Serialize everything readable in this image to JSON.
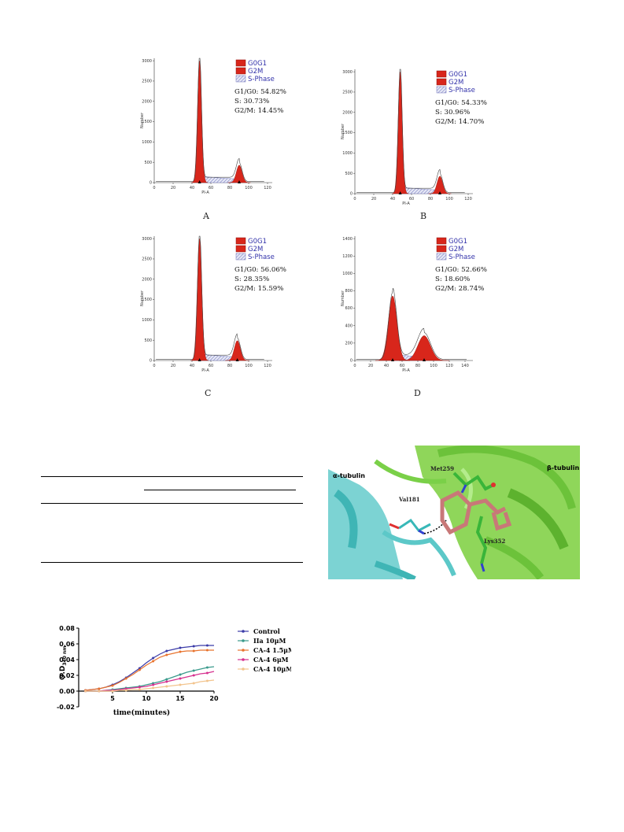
{
  "flow_panels": [
    {
      "id": "A",
      "label": "A",
      "legend": [
        "G0G1",
        "G2M",
        "S-Phase"
      ],
      "stats": [
        "G1/G0: 54.82%",
        "S: 30.73%",
        "G2/M: 14.45%"
      ],
      "y_ticks": [
        "0",
        "500",
        "1000",
        "1500",
        "2000",
        "2500",
        "3000"
      ],
      "x_ticks": [
        "0",
        "20",
        "40",
        "60",
        "80",
        "100",
        "120"
      ],
      "ylabel": "Number",
      "xlabel": "PI-A"
    },
    {
      "id": "B",
      "label": "B",
      "legend": [
        "G0G1",
        "G2M",
        "S-Phase"
      ],
      "stats": [
        "G1/G0: 54.33%",
        "S: 30.96%",
        "G2/M: 14.70%"
      ],
      "y_ticks": [
        "0",
        "500",
        "1000",
        "1500",
        "2000",
        "2500",
        "3000"
      ],
      "x_ticks": [
        "0",
        "20",
        "40",
        "60",
        "80",
        "100",
        "120"
      ],
      "ylabel": "Number",
      "xlabel": "PI-A"
    },
    {
      "id": "C",
      "label": "C",
      "legend": [
        "G0G1",
        "G2M",
        "S-Phase"
      ],
      "stats": [
        "G1/G0: 56.06%",
        "S: 28.35%",
        "G2/M: 15.59%"
      ],
      "y_ticks": [
        "0",
        "500",
        "1000",
        "1500",
        "2000",
        "2500",
        "3000"
      ],
      "x_ticks": [
        "0",
        "20",
        "40",
        "60",
        "80",
        "100",
        "120"
      ],
      "ylabel": "Number",
      "xlabel": "PI-A"
    },
    {
      "id": "D",
      "label": "D",
      "legend": [
        "G0G1",
        "G2M",
        "S-Phase"
      ],
      "stats": [
        "G1/G0: 52.66%",
        "S: 18.60%",
        "G2/M: 28.74%"
      ],
      "y_ticks": [
        "0",
        "200",
        "400",
        "600",
        "800",
        "1000",
        "1200",
        "1400"
      ],
      "x_ticks": [
        "0",
        "20",
        "40",
        "60",
        "80",
        "100",
        "120",
        "140"
      ],
      "ylabel": "Number",
      "xlabel": "PI-A"
    }
  ],
  "docking": {
    "alpha_label": "α-tubulin",
    "beta_label": "β-tubulin",
    "residues": [
      "Met259",
      "Val181",
      "Lys352"
    ]
  },
  "chart_data": {
    "type": "line",
    "xlabel": "time(minutes)",
    "ylabel": "O.D",
    "ylabel_sub": "340 nm",
    "xlim": [
      0,
      20
    ],
    "ylim": [
      -0.02,
      0.08
    ],
    "x_ticks": [
      "5",
      "10",
      "15",
      "20"
    ],
    "y_ticks": [
      "-0.02",
      "0.00",
      "0.02",
      "0.04",
      "0.06",
      "0.08"
    ],
    "x": [
      1,
      2,
      3,
      4,
      5,
      6,
      7,
      8,
      9,
      10,
      11,
      12,
      13,
      14,
      15,
      16,
      17,
      18,
      19,
      20
    ],
    "series": [
      {
        "name": "Control",
        "color": "#3b3ba8",
        "marker": "diamond",
        "values": [
          0.001,
          0.002,
          0.003,
          0.005,
          0.008,
          0.012,
          0.017,
          0.023,
          0.029,
          0.036,
          0.042,
          0.047,
          0.051,
          0.053,
          0.055,
          0.056,
          0.057,
          0.058,
          0.058,
          0.058
        ]
      },
      {
        "name": "IIa 10μM",
        "color": "#3a9a8c",
        "marker": "circle",
        "values": [
          0.0,
          0.0,
          0.0,
          0.001,
          0.002,
          0.003,
          0.004,
          0.005,
          0.006,
          0.008,
          0.01,
          0.012,
          0.015,
          0.018,
          0.021,
          0.024,
          0.026,
          0.028,
          0.03,
          0.031
        ]
      },
      {
        "name": "CA-4 1.5μM",
        "color": "#e8732e",
        "marker": "triangle",
        "values": [
          0.001,
          0.002,
          0.003,
          0.005,
          0.007,
          0.011,
          0.016,
          0.021,
          0.027,
          0.033,
          0.038,
          0.043,
          0.046,
          0.048,
          0.05,
          0.051,
          0.051,
          0.052,
          0.052,
          0.052
        ]
      },
      {
        "name": "CA-4 6μM",
        "color": "#d6318f",
        "marker": "triangle-down",
        "values": [
          0.0,
          0.0,
          0.0,
          0.001,
          0.001,
          0.002,
          0.003,
          0.004,
          0.005,
          0.006,
          0.008,
          0.01,
          0.012,
          0.014,
          0.016,
          0.018,
          0.02,
          0.022,
          0.023,
          0.025
        ]
      },
      {
        "name": "CA-4 10μM",
        "color": "#f2c48d",
        "marker": "circle",
        "values": [
          0.0,
          0.0,
          0.0,
          0.0,
          0.0,
          0.001,
          0.001,
          0.002,
          0.002,
          0.003,
          0.004,
          0.005,
          0.006,
          0.007,
          0.008,
          0.009,
          0.01,
          0.012,
          0.013,
          0.014
        ]
      }
    ]
  }
}
